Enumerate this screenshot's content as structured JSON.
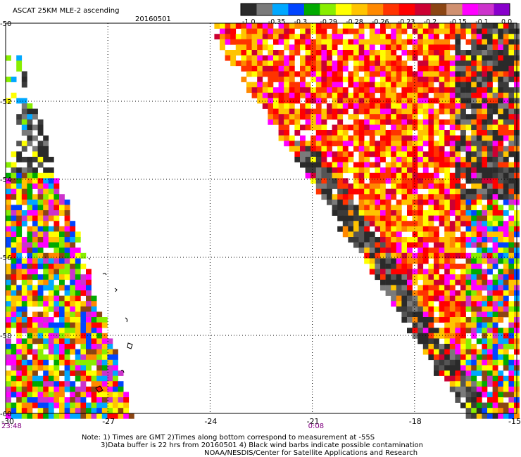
{
  "chart_data": {
    "type": "heatmap",
    "title": "ASCAT 25KM MLE-2 ascending",
    "date": "20160501",
    "x_ticks": [
      "-30",
      "-27",
      "-24",
      "-21",
      "-18",
      "-15"
    ],
    "y_ticks": [
      "-50",
      "-52",
      "-54",
      "-56",
      "-58",
      "-60"
    ],
    "xlim": [
      -30,
      -15
    ],
    "ylim": [
      -60,
      -50
    ],
    "grid": true,
    "time_labels": [
      {
        "x": -30,
        "text": "23:48"
      },
      {
        "x": -21,
        "text": "0:08"
      }
    ],
    "colorbar": {
      "placement": "top",
      "labels": [
        "-1.0",
        "-0.35",
        "-0.3",
        "-0.29",
        "-0.28",
        "-0.26",
        "-0.23",
        "-0.2",
        "-0.15",
        "-0.1",
        "0.0"
      ],
      "colors": [
        "#2a2a2a",
        "#7a7a7a",
        "#00a8ff",
        "#0044ff",
        "#00aa00",
        "#88ee00",
        "#ffff00",
        "#ffc400",
        "#ff8800",
        "#ff3300",
        "#ff0000",
        "#cc0033",
        "#8b4513",
        "#d09070",
        "#ff00ff",
        "#cc33cc",
        "#8800cc"
      ]
    }
  },
  "footer": {
    "note1": "Note: 1) Times are GMT 2)Times along bottom correspond to measurement at -55S",
    "note2": "3)Data buffer is 22 hrs from 20160501 4) Black wind barbs indicate possible contamination",
    "note3": "NOAA/NESDIS/Center for Satellite Applications and Research"
  }
}
